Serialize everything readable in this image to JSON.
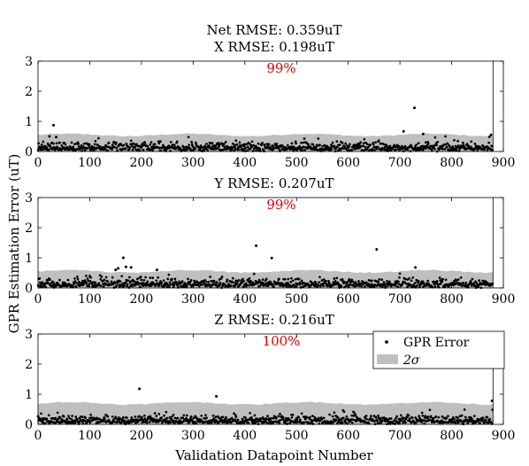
{
  "figure": {
    "suptitle": "Net RMSE: 0.359uT",
    "ylabel": "GPR Estimation Error (uT)",
    "xlabel": "Validation Datapoint Number"
  },
  "legend": {
    "items": [
      {
        "label": "GPR Error",
        "marker": "dot",
        "color": "#000000"
      },
      {
        "label": "2σ",
        "marker": "band",
        "color": "#bfbfbf"
      }
    ],
    "placement": "top-right of bottom panel"
  },
  "colors": {
    "points": "#000000",
    "band": "#bfbfbf",
    "percent_text": "#e00000"
  },
  "chart_data": [
    {
      "type": "scatter",
      "title": "X RMSE: 0.198uT",
      "percent_label": "99%",
      "xlim": [
        0,
        900
      ],
      "ylim": [
        0,
        3
      ],
      "xticks": [
        0,
        100,
        200,
        300,
        400,
        500,
        600,
        700,
        800,
        900
      ],
      "yticks": [
        0,
        1,
        2,
        3
      ],
      "grid": false,
      "vertical_line_x": 880,
      "band_level": 0.55,
      "n_points": 880,
      "outliers": [
        {
          "x": 30,
          "y": 0.87
        },
        {
          "x": 22,
          "y": 0.5
        },
        {
          "x": 35,
          "y": 0.48
        },
        {
          "x": 707,
          "y": 0.67
        },
        {
          "x": 728,
          "y": 1.45
        },
        {
          "x": 745,
          "y": 0.58
        },
        {
          "x": 876,
          "y": 0.55
        }
      ]
    },
    {
      "type": "scatter",
      "title": "Y RMSE: 0.207uT",
      "percent_label": "99%",
      "xlim": [
        0,
        900
      ],
      "ylim": [
        0,
        3
      ],
      "xticks": [
        0,
        100,
        200,
        300,
        400,
        500,
        600,
        700,
        800,
        900
      ],
      "yticks": [
        0,
        1,
        2,
        3
      ],
      "grid": false,
      "vertical_line_x": 880,
      "band_level": 0.55,
      "n_points": 880,
      "outliers": [
        {
          "x": 150,
          "y": 0.6
        },
        {
          "x": 155,
          "y": 0.65
        },
        {
          "x": 165,
          "y": 1.0
        },
        {
          "x": 170,
          "y": 0.7
        },
        {
          "x": 180,
          "y": 0.68
        },
        {
          "x": 230,
          "y": 0.6
        },
        {
          "x": 422,
          "y": 1.4
        },
        {
          "x": 452,
          "y": 0.99
        },
        {
          "x": 655,
          "y": 1.28
        },
        {
          "x": 730,
          "y": 0.68
        }
      ]
    },
    {
      "type": "scatter",
      "title": "Z RMSE: 0.216uT",
      "percent_label": "100%",
      "xlim": [
        0,
        900
      ],
      "ylim": [
        0,
        3
      ],
      "xticks": [
        0,
        100,
        200,
        300,
        400,
        500,
        600,
        700,
        800,
        900
      ],
      "yticks": [
        0,
        1,
        2,
        3
      ],
      "grid": false,
      "vertical_line_x": 880,
      "band_level": 0.7,
      "n_points": 880,
      "outliers": [
        {
          "x": 196,
          "y": 1.18
        },
        {
          "x": 345,
          "y": 0.93
        },
        {
          "x": 878,
          "y": 0.78
        }
      ]
    }
  ]
}
